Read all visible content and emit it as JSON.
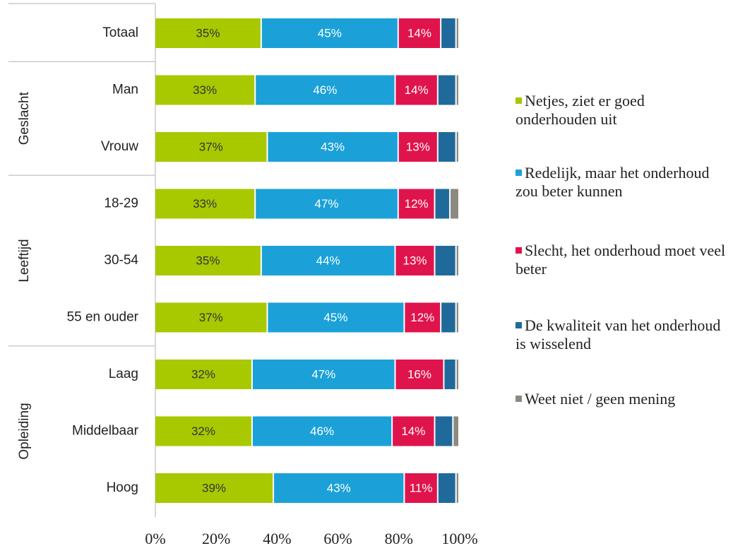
{
  "chart_data": {
    "type": "stacked-bar",
    "categories": [
      "Totaal",
      "Man",
      "Vrouw",
      "18-29",
      "30-54",
      "55 en ouder",
      "Laag",
      "Middelbaar",
      "Hoog"
    ],
    "group_labels": [
      "Geslacht",
      "Leeftijd",
      "Opleiding"
    ],
    "series": [
      {
        "name": "Netjes, ziet er goed onderhouden uit",
        "color": "#a8c800",
        "values": [
          35,
          33,
          37,
          33,
          35,
          37,
          32,
          32,
          39
        ],
        "value_labels": [
          "35%",
          "33%",
          "37%",
          "33%",
          "35%",
          "37%",
          "32%",
          "32%",
          "39%"
        ]
      },
      {
        "name": "Redelijk, maar het onderhoud zou beter kunnen",
        "color": "#1ba1d8",
        "values": [
          45,
          46,
          43,
          47,
          44,
          45,
          47,
          46,
          43
        ],
        "value_labels": [
          "45%",
          "46%",
          "43%",
          "47%",
          "44%",
          "45%",
          "47%",
          "46%",
          "43%"
        ]
      },
      {
        "name": "Slecht, het onderhoud moet veel beter",
        "color": "#e0144c",
        "values": [
          14,
          14,
          13,
          12,
          13,
          12,
          16,
          14,
          11
        ],
        "value_labels": [
          "14%",
          "14%",
          "13%",
          "12%",
          "13%",
          "12%",
          "16%",
          "14%",
          "11%"
        ]
      },
      {
        "name": "De kwaliteit van het onderhoud is wisselend",
        "color": "#1f6a9a",
        "values": [
          5,
          6,
          6,
          5,
          7,
          5,
          4,
          6,
          6
        ]
      },
      {
        "name": "Weet niet / geen mening",
        "color": "#8c8a80",
        "values": [
          1,
          1,
          1,
          3,
          1,
          1,
          1,
          2,
          1
        ]
      }
    ],
    "xlim": [
      0,
      100
    ],
    "xticks": [
      {
        "value": 0,
        "label": "0%"
      },
      {
        "value": 20,
        "label": "20%"
      },
      {
        "value": 40,
        "label": "40%"
      },
      {
        "value": 60,
        "label": "60%"
      },
      {
        "value": 80,
        "label": "80%"
      },
      {
        "value": 100,
        "label": "100%"
      }
    ],
    "legend": "right"
  }
}
